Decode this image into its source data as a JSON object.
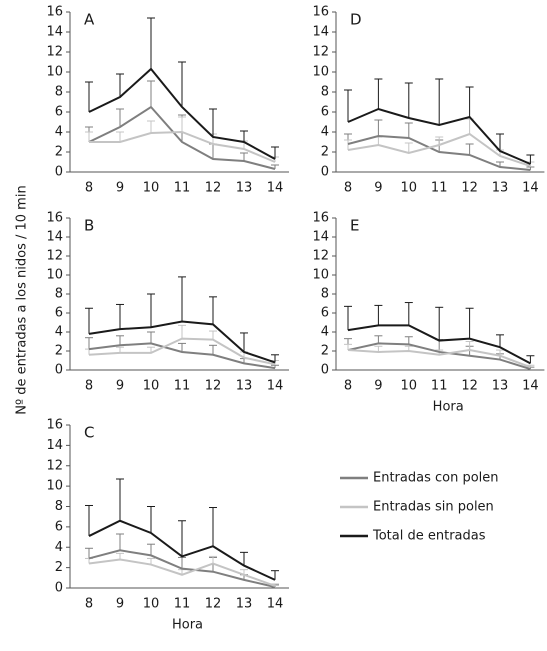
{
  "y_label": "Nº de entradas a los nidos / 10 min",
  "legend": [
    {
      "name": "Entradas con polen",
      "color": "#7f7f7f"
    },
    {
      "name": "Entradas sin polen",
      "color": "#c4c4c4"
    },
    {
      "name": "Total de entradas",
      "color": "#1a1a1a"
    }
  ],
  "chart_data": [
    {
      "type": "line",
      "title": "A",
      "categories": [
        8,
        9,
        10,
        11,
        12,
        13,
        14
      ],
      "ylim": [
        0,
        16
      ],
      "yticks": [
        0,
        2,
        4,
        6,
        8,
        10,
        12,
        14,
        16
      ],
      "series": [
        {
          "values": [
            3,
            4.5,
            6.5,
            3,
            1.3,
            1.1,
            0.3
          ],
          "errors": [
            1.5,
            1.8,
            2.6,
            2.7,
            1.5,
            0.8,
            0.4
          ]
        },
        {
          "values": [
            3,
            3,
            3.9,
            4,
            2.8,
            2.3,
            1
          ],
          "errors": [
            1,
            1,
            1.2,
            1.5,
            1,
            0.8,
            0.5
          ]
        },
        {
          "values": [
            6,
            7.5,
            10.3,
            6.5,
            3.5,
            3,
            1.3
          ],
          "errors": [
            3,
            2.3,
            5.1,
            4.5,
            2.8,
            1.1,
            1.2
          ]
        }
      ]
    },
    {
      "type": "line",
      "title": "B",
      "categories": [
        8,
        9,
        10,
        11,
        12,
        13,
        14
      ],
      "ylim": [
        0,
        16
      ],
      "yticks": [
        0,
        2,
        4,
        6,
        8,
        10,
        12,
        14,
        16
      ],
      "series": [
        {
          "values": [
            2.2,
            2.6,
            2.8,
            1.9,
            1.6,
            0.7,
            0.2
          ],
          "errors": [
            1.2,
            1,
            1.2,
            0.9,
            1,
            0.5,
            0.3
          ]
        },
        {
          "values": [
            1.6,
            1.8,
            1.8,
            3.3,
            3.2,
            1.3,
            0.6
          ],
          "errors": [
            0.6,
            0.6,
            0.6,
            1.4,
            0.9,
            0.6,
            0.4
          ]
        },
        {
          "values": [
            3.8,
            4.3,
            4.5,
            5.1,
            4.8,
            1.9,
            0.8
          ],
          "errors": [
            2.7,
            2.6,
            3.5,
            4.7,
            2.9,
            2,
            0.8
          ]
        }
      ]
    },
    {
      "type": "line",
      "title": "C",
      "x_label": "Hora",
      "categories": [
        8,
        9,
        10,
        11,
        12,
        13,
        14
      ],
      "ylim": [
        0,
        16
      ],
      "yticks": [
        0,
        2,
        4,
        6,
        8,
        10,
        12,
        14,
        16
      ],
      "series": [
        {
          "values": [
            2.9,
            3.7,
            3.2,
            1.9,
            1.6,
            0.8,
            0.1
          ],
          "errors": [
            1,
            1.6,
            1.1,
            1.1,
            1.4,
            0.5,
            0.2
          ]
        },
        {
          "values": [
            2.4,
            2.8,
            2.3,
            1.3,
            2.4,
            1.3,
            0.2
          ],
          "errors": [
            0.5,
            0.6,
            0.6,
            0.5,
            0.7,
            0.5,
            0.2
          ]
        },
        {
          "values": [
            5.1,
            6.6,
            5.4,
            3.1,
            4.1,
            2.2,
            0.8
          ],
          "errors": [
            3,
            4.1,
            2.6,
            3.5,
            3.8,
            1.3,
            0.9
          ]
        }
      ]
    },
    {
      "type": "line",
      "title": "D",
      "categories": [
        8,
        9,
        10,
        11,
        12,
        13,
        14
      ],
      "ylim": [
        0,
        16
      ],
      "yticks": [
        0,
        2,
        4,
        6,
        8,
        10,
        12,
        14,
        16
      ],
      "series": [
        {
          "values": [
            2.8,
            3.6,
            3.4,
            2,
            1.7,
            0.5,
            0.2
          ],
          "errors": [
            1,
            1.6,
            1.5,
            1.2,
            1.1,
            0.5,
            0.3
          ]
        },
        {
          "values": [
            2.2,
            2.7,
            1.9,
            2.7,
            3.8,
            1.6,
            0.6
          ],
          "errors": [
            1,
            0.8,
            1,
            0.8,
            1.5,
            0.6,
            0.4
          ]
        },
        {
          "values": [
            5,
            6.3,
            5.4,
            4.7,
            5.5,
            2.1,
            0.8
          ],
          "errors": [
            3.2,
            3,
            3.5,
            4.6,
            3,
            1.7,
            0.9
          ]
        }
      ]
    },
    {
      "type": "line",
      "title": "E",
      "x_label": "Hora",
      "categories": [
        8,
        9,
        10,
        11,
        12,
        13,
        14
      ],
      "ylim": [
        0,
        16
      ],
      "yticks": [
        0,
        2,
        4,
        6,
        8,
        10,
        12,
        14,
        16
      ],
      "series": [
        {
          "values": [
            2.1,
            2.8,
            2.7,
            1.9,
            1.5,
            1.1,
            0.1
          ],
          "errors": [
            1.2,
            0.8,
            0.8,
            1.3,
            1,
            0.6,
            0.2
          ]
        },
        {
          "values": [
            2.1,
            1.9,
            2,
            1.6,
            2.1,
            1.5,
            0.3
          ],
          "errors": [
            0.6,
            0.6,
            0.5,
            0.5,
            0.9,
            0.6,
            0.2
          ]
        },
        {
          "values": [
            4.2,
            4.7,
            4.7,
            3.1,
            3.3,
            2.4,
            0.7
          ],
          "errors": [
            2.5,
            2.1,
            2.4,
            3.5,
            3.2,
            1.3,
            0.8
          ]
        }
      ]
    }
  ]
}
